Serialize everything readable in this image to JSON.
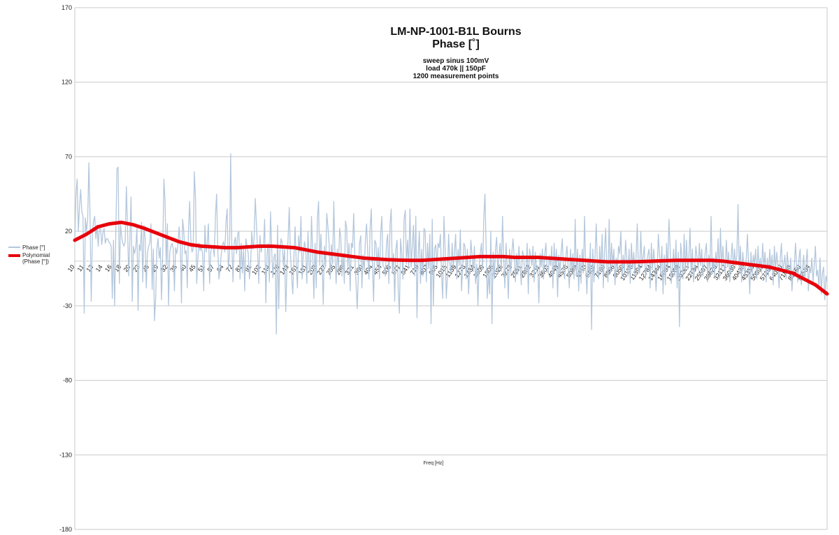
{
  "chart_data": {
    "type": "line",
    "title_line1": "LM-NP-1001-B1L Bourns",
    "title_line2": "Phase [˚]",
    "subtitle_lines": [
      "sweep sinus 100mV",
      "load 470k || 150pF",
      "1200 measurement points"
    ],
    "xlabel": "Freq [Hz]",
    "ylabel": "",
    "ylim": [
      -180,
      170
    ],
    "y_ticks": [
      170,
      120,
      70,
      20,
      -30,
      -80,
      -130,
      -180
    ],
    "x_tick_labels": [
      "10",
      "11",
      "13",
      "14",
      "16",
      "18",
      "20",
      "23",
      "26",
      "29",
      "32",
      "36",
      "40",
      "45",
      "51",
      "57",
      "64",
      "72",
      "81",
      "91",
      "102",
      "114",
      "128",
      "143",
      "161",
      "181",
      "203",
      "227",
      "255",
      "286",
      "321",
      "360",
      "404",
      "454",
      "509",
      "571",
      "641",
      "719",
      "807",
      "905",
      "1015",
      "1139",
      "1278",
      "1434",
      "1609",
      "1806",
      "2026",
      "2273",
      "2551",
      "2862",
      "3211",
      "3603",
      "4043",
      "4536",
      "5089",
      "5710",
      "6407",
      "7189",
      "8066",
      "9050",
      "10155",
      "11394",
      "12784",
      "14344",
      "16094",
      "18058",
      "20261",
      "22734",
      "25507",
      "28620",
      "32112",
      "36030",
      "40426",
      "45359",
      "50893",
      "57102",
      "64070",
      "71888",
      "80660",
      "90504"
    ],
    "grid": true,
    "legend_placement": "left",
    "zero_line": 0,
    "series": [
      {
        "name": "Phase [°]",
        "color": "#b4c7dc",
        "values": [
          15,
          45,
          55,
          20,
          36,
          48,
          33,
          30,
          -35,
          29,
          20,
          28,
          66,
          30,
          -27,
          18,
          27,
          30,
          15,
          24,
          10,
          23,
          22,
          11,
          19,
          22,
          12,
          15,
          15,
          13,
          12,
          10,
          -25,
          14,
          -30,
          20,
          62,
          63,
          -15,
          25,
          16,
          12,
          10,
          13,
          50,
          22,
          -10,
          15,
          43,
          -27,
          10,
          5,
          9,
          22,
          -33,
          11,
          7,
          26,
          -14,
          24,
          15,
          -18,
          5,
          10,
          12,
          25,
          -19,
          8,
          -40,
          -25,
          8,
          15,
          2,
          9,
          -26,
          5,
          55,
          40,
          -3,
          25,
          -30,
          6,
          10,
          12,
          8,
          -20,
          9,
          5,
          11,
          23,
          12,
          -28,
          28,
          20,
          5,
          7,
          -18,
          20,
          40,
          15,
          6,
          8,
          60,
          42,
          -15,
          2,
          12,
          7,
          10,
          5,
          -20,
          24,
          6,
          12,
          25,
          -15,
          6,
          10,
          10,
          3,
          30,
          45,
          8,
          -12,
          -5,
          5,
          11,
          13,
          6,
          26,
          35,
          -5,
          4,
          72,
          10,
          -14,
          12,
          16,
          5,
          18,
          20,
          -12,
          12,
          -8,
          8,
          -20,
          15,
          10,
          5,
          -12,
          -3,
          20,
          8,
          15,
          42,
          25,
          6,
          -15,
          17,
          6,
          10,
          9,
          28,
          -28,
          4,
          12,
          -14,
          33,
          8,
          -11,
          3,
          5,
          -49,
          24,
          -32,
          6,
          15,
          12,
          -3,
          8,
          -34,
          -6,
          15,
          36,
          5,
          -10,
          -22,
          4,
          23,
          -3,
          -18,
          17,
          6,
          30,
          -12,
          5,
          13,
          8,
          -15,
          20,
          -5,
          -8,
          30,
          5,
          -25,
          12,
          -18,
          28,
          40,
          -3,
          18,
          2,
          -29,
          10,
          -4,
          32,
          23,
          12,
          -12,
          11,
          -2,
          40,
          5,
          -15,
          8,
          -5,
          22,
          16,
          -10,
          5,
          -15,
          27,
          22,
          -4,
          12,
          -20,
          12,
          9,
          32,
          2,
          -15,
          -32,
          -8,
          12,
          17,
          -18,
          4,
          -6,
          15,
          25,
          5,
          -12,
          22,
          35,
          -3,
          -27,
          14,
          12,
          -4,
          9,
          -12,
          18,
          30,
          -3,
          -4,
          -10,
          12,
          18,
          -15,
          24,
          35,
          -8,
          5,
          -27,
          8,
          14,
          -20,
          -35,
          15,
          5,
          -12,
          28,
          34,
          -2,
          14,
          -5,
          35,
          -4,
          10,
          24,
          -10,
          30,
          -38,
          4,
          20,
          -15,
          8,
          -10,
          22,
          20,
          -14,
          12,
          -5,
          18,
          -42,
          28,
          -30,
          8,
          11,
          -3,
          12,
          9,
          18,
          -10,
          -25,
          30,
          8,
          -25,
          -10,
          18,
          -1,
          -8,
          12,
          -4,
          6,
          18,
          -12,
          8,
          -3,
          21,
          -20,
          -5,
          12,
          10,
          -12,
          8,
          -22,
          -6,
          14,
          4,
          -7,
          10,
          -15,
          -2,
          -30,
          -4,
          5,
          12,
          -6,
          28,
          45,
          10,
          -25,
          -8,
          -22,
          20,
          -42,
          6,
          -12,
          8,
          16,
          -8,
          4,
          12,
          -7,
          30,
          2,
          -18,
          12,
          -4,
          -25,
          8,
          -8,
          6,
          15,
          2,
          -14,
          5,
          -9,
          10,
          -3,
          -16,
          7,
          4,
          -10,
          -5,
          12,
          -22,
          8,
          4,
          -3,
          10,
          -14,
          6,
          -6,
          -3,
          -28,
          5,
          -4,
          8,
          -12,
          4,
          12,
          -6,
          -8,
          4,
          -3,
          10,
          -18,
          12,
          -5,
          8,
          -24,
          4,
          -8,
          6,
          15,
          -6,
          -12,
          3,
          10,
          -4,
          -18,
          8,
          -6,
          5,
          -12,
          28,
          -10,
          8,
          -20,
          4,
          -15,
          8,
          -8,
          30,
          -4,
          -22,
          2,
          -10,
          12,
          -46,
          8,
          -14,
          5,
          25,
          -6,
          -12,
          10,
          -8,
          18,
          -18,
          6,
          22,
          -4,
          -14,
          28,
          -8,
          12,
          -3,
          8,
          -16,
          2,
          -6,
          10,
          5,
          20,
          -12,
          4,
          -8,
          14,
          2,
          -10,
          8,
          -15,
          12,
          -5,
          6,
          -10,
          4,
          25,
          -6,
          -8,
          20,
          -4,
          3,
          10,
          -12,
          -4,
          4,
          8,
          -18,
          12,
          -6,
          8,
          -2,
          -20,
          -5,
          18,
          4,
          -8,
          10,
          -22,
          4,
          -16,
          12,
          -6,
          28,
          10,
          -15,
          -4,
          8,
          -10,
          14,
          -18,
          6,
          -44,
          12,
          4,
          -12,
          18,
          -8,
          14,
          -6,
          2,
          22,
          -10,
          8,
          -14,
          -4,
          10,
          2,
          -6,
          12,
          -3,
          8,
          -10,
          -2,
          6,
          12,
          -14,
          4,
          -6,
          30,
          -8,
          2,
          -10,
          6,
          -4,
          15,
          -12,
          22,
          -5,
          10,
          -2,
          -8,
          14,
          -4,
          6,
          -14,
          2,
          12,
          -6,
          8,
          -3,
          4,
          38,
          -8,
          10,
          -14,
          6,
          -4,
          -10,
          2,
          18,
          -4,
          -22,
          6,
          -10,
          4,
          -2,
          8,
          -12,
          10,
          -6,
          2,
          -8,
          12,
          -4,
          6,
          -14,
          2,
          -10,
          8,
          -5,
          4,
          -16,
          10,
          -6,
          6,
          -3,
          -18,
          2,
          12,
          -8,
          -2,
          4,
          -12,
          6,
          -4,
          -10,
          2,
          -20,
          -6,
          -4,
          12,
          -3,
          -14,
          2,
          8,
          -16,
          -6,
          4,
          -12,
          -2,
          8,
          -20,
          -4,
          -8,
          2,
          -14,
          -3,
          10,
          -10,
          -6,
          -18,
          2,
          -22,
          -8,
          -4,
          -26,
          -10,
          -14
        ]
      },
      {
        "name": "Polynomial (Phase [°])",
        "color": "#e8000b",
        "values": [
          14,
          18,
          23,
          25,
          26,
          24.5,
          22,
          19,
          16,
          13,
          11,
          10,
          9.5,
          9,
          9,
          9.5,
          10,
          10,
          9.5,
          9,
          7.5,
          6,
          5,
          4,
          3,
          2,
          1.5,
          1,
          0.7,
          0.5,
          0.5,
          1,
          1.5,
          2,
          2.5,
          3,
          3,
          3,
          2.5,
          2.5,
          2.5,
          2,
          1.5,
          1,
          0.5,
          0,
          -0.5,
          -0.5,
          -0.5,
          -0.3,
          0,
          0.3,
          0.5,
          0.5,
          0.5,
          0.5,
          0,
          -1,
          -2,
          -3,
          -4,
          -6,
          -8,
          -12,
          -16,
          -22
        ]
      }
    ]
  }
}
